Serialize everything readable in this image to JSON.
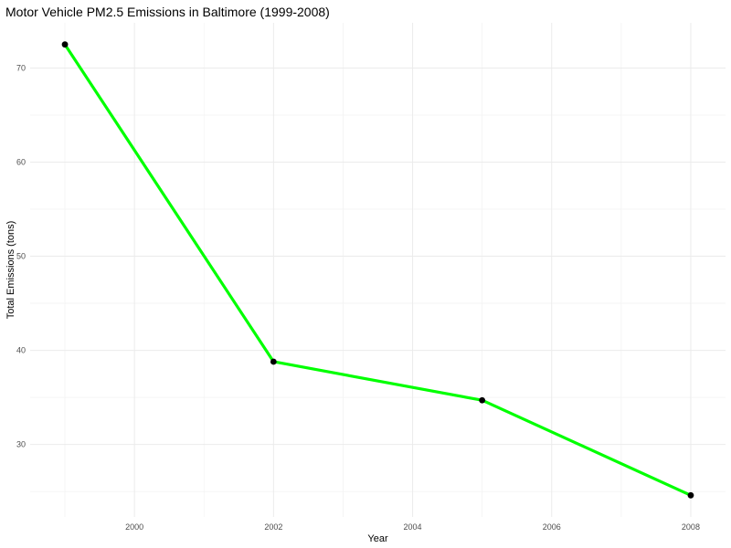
{
  "chart_data": {
    "type": "line",
    "title": "Motor Vehicle PM2.5 Emissions in Baltimore (1999-2008)",
    "xlabel": "Year",
    "ylabel": "Total Emissions (tons)",
    "x": [
      1999,
      2002,
      2005,
      2008
    ],
    "series": [
      {
        "values": [
          72.5,
          38.8,
          34.7,
          24.6
        ]
      }
    ],
    "xlim": [
      1998.5,
      2008.5
    ],
    "ylim": [
      22.3,
      74.8
    ],
    "x_ticks": [
      2000,
      2002,
      2004,
      2006,
      2008
    ],
    "y_ticks": [
      30,
      40,
      50,
      60,
      70
    ],
    "line_color": "#00ff00",
    "point_color": "#000000",
    "grid": true,
    "legend": "none"
  }
}
